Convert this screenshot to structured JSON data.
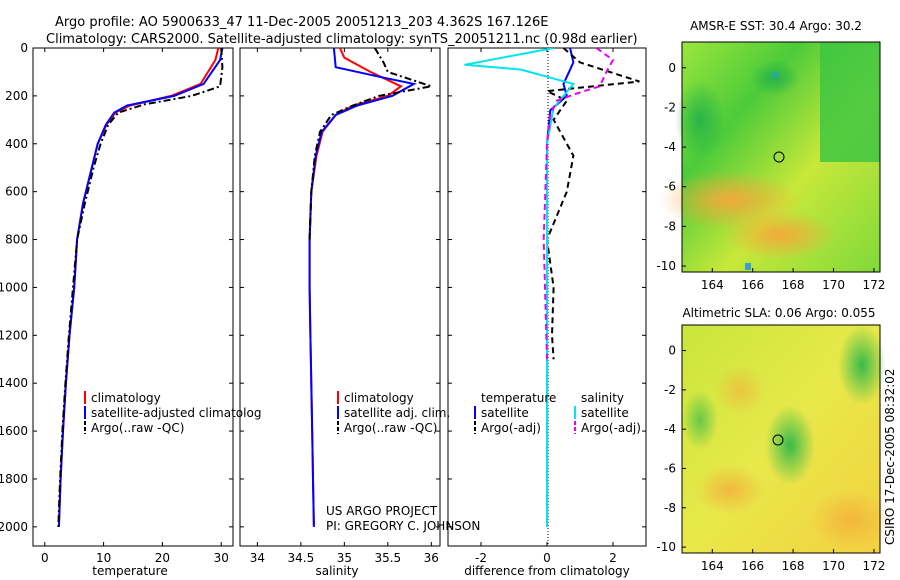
{
  "title_line1": "Argo profile: AO 5900633_47 11-Dec-2005 20051213_203 4.362S 167.126E",
  "title_line2": "Climatology: CARS2000. Satellite-adjusted climatology: synTS_20051211.nc (0.98d earlier)",
  "credit": [
    "US ARGO PROJECT",
    "PI: GREGORY C. JOHNSON"
  ],
  "side_label": "CSIRO 17-Dec-2005 08:32:02",
  "colors": {
    "climatology": "#ff0000",
    "satellite": "#0000ff",
    "argo": "#000000",
    "salinity_satellite": "#00e5ee",
    "salinity_argo": "#ee00ee"
  },
  "chart_data": [
    {
      "type": "line",
      "name": "temperature-panel",
      "xlabel": "temperature",
      "ylabel": "",
      "xlim": [
        -2,
        32
      ],
      "ylim": [
        2080,
        0
      ],
      "y_reversed": true,
      "xticks": [
        "0",
        "10",
        "20",
        "30"
      ],
      "xtick_values": [
        0,
        10,
        20,
        30
      ],
      "yticks": [
        "0",
        "200",
        "400",
        "600",
        "800",
        "1000",
        "1200",
        "1400",
        "1600",
        "1800",
        "2000"
      ],
      "ytick_values": [
        0,
        200,
        400,
        600,
        800,
        1000,
        1200,
        1400,
        1600,
        1800,
        2000
      ],
      "legend": [
        "climatology",
        "satellite-adjusted climatolog",
        "Argo(..raw -QC)"
      ],
      "series": [
        {
          "name": "climatology",
          "color": "#ff0000",
          "dash": "solid",
          "x": [
            29.5,
            29.0,
            26.5,
            21.5,
            14.5,
            12.0,
            10.5,
            9.0,
            8.0,
            6.5,
            5.5,
            5.0,
            4.2,
            3.6,
            3.1,
            2.7,
            2.4
          ],
          "y": [
            0,
            50,
            150,
            200,
            240,
            270,
            320,
            400,
            500,
            650,
            800,
            1000,
            1200,
            1400,
            1600,
            1800,
            2000
          ]
        },
        {
          "name": "satellite-adjusted climatolog",
          "color": "#0000ff",
          "dash": "solid",
          "x": [
            30.2,
            29.8,
            27.0,
            22.0,
            14.0,
            11.8,
            10.4,
            9.0,
            8.0,
            6.5,
            5.5,
            5.0,
            4.2,
            3.6,
            3.1,
            2.7,
            2.4
          ],
          "y": [
            0,
            50,
            150,
            200,
            240,
            270,
            320,
            400,
            500,
            650,
            800,
            1000,
            1200,
            1400,
            1600,
            1800,
            2000
          ]
        },
        {
          "name": "Argo(..raw -QC)",
          "color": "#000000",
          "dash": "dashdot",
          "x": [
            30.0,
            30.2,
            29.8,
            25.0,
            17.0,
            12.5,
            10.8,
            9.5,
            8.3,
            6.8,
            5.5,
            4.8,
            4.1,
            3.5,
            3.0,
            2.6,
            2.3
          ],
          "y": [
            0,
            80,
            160,
            200,
            235,
            270,
            320,
            400,
            500,
            650,
            800,
            1000,
            1200,
            1400,
            1600,
            1800,
            2000
          ]
        }
      ]
    },
    {
      "type": "line",
      "name": "salinity-panel",
      "xlabel": "salinity",
      "xlim": [
        33.8,
        36.1
      ],
      "ylim": [
        2080,
        0
      ],
      "y_reversed": true,
      "xticks": [
        "34",
        "34.5",
        "35",
        "35.5",
        "36"
      ],
      "xtick_values": [
        34,
        34.5,
        35,
        35.5,
        36
      ],
      "legend": [
        "climatology",
        "satellite adj. clim.",
        "Argo(..raw -QC)"
      ],
      "series": [
        {
          "name": "climatology",
          "color": "#ff0000",
          "dash": "solid",
          "x": [
            34.95,
            35.0,
            35.3,
            35.65,
            35.5,
            35.1,
            34.9,
            34.75,
            34.68,
            34.62,
            34.6,
            34.6,
            34.61,
            34.62,
            34.63,
            34.64,
            34.65
          ],
          "y": [
            0,
            40,
            100,
            160,
            200,
            240,
            280,
            350,
            450,
            600,
            800,
            1000,
            1200,
            1400,
            1600,
            1800,
            2000
          ]
        },
        {
          "name": "satellite adj. clim.",
          "color": "#0000ff",
          "dash": "solid",
          "x": [
            34.88,
            34.9,
            35.4,
            35.8,
            35.55,
            35.15,
            34.9,
            34.74,
            34.67,
            34.62,
            34.6,
            34.6,
            34.61,
            34.62,
            34.63,
            34.64,
            34.65
          ],
          "y": [
            0,
            80,
            120,
            150,
            200,
            240,
            280,
            350,
            450,
            600,
            800,
            1000,
            1200,
            1400,
            1600,
            1800,
            2000
          ]
        },
        {
          "name": "Argo(..raw -QC)",
          "color": "#000000",
          "dash": "dashdot",
          "x": [
            35.35,
            35.45,
            35.5,
            36.0,
            35.4,
            35.1,
            34.85,
            34.72,
            34.66,
            34.62,
            34.6
          ],
          "y": [
            0,
            60,
            100,
            160,
            200,
            240,
            280,
            350,
            450,
            600,
            800
          ]
        }
      ]
    },
    {
      "type": "line",
      "name": "difference-panel",
      "xlabel": "difference from climatology",
      "xlim": [
        -3,
        3
      ],
      "ylim": [
        2080,
        0
      ],
      "y_reversed": true,
      "xticks": [
        "-2",
        "0",
        "2"
      ],
      "xtick_values": [
        -2,
        0,
        2
      ],
      "legend_groups": [
        {
          "heading": "temperature",
          "entries": [
            "satellite",
            "Argo(-adj)"
          ]
        },
        {
          "heading": "salinity",
          "entries": [
            "satellite",
            "Argo(-adj)"
          ]
        }
      ],
      "series": [
        {
          "name": "satellite",
          "group": "temperature",
          "color": "#0000ff",
          "dash": "solid",
          "x": [
            0.7,
            0.8,
            0.5,
            0.6,
            0.1,
            0.0,
            0.0,
            0.0,
            0.0,
            0.0
          ],
          "y": [
            0,
            60,
            150,
            200,
            260,
            400,
            800,
            1200,
            1600,
            2000
          ]
        },
        {
          "name": "Argo(-adj)",
          "group": "temperature",
          "color": "#000000",
          "dash": "dashed",
          "x": [
            0.5,
            1.0,
            2.8,
            0.0,
            0.6,
            0.2,
            0.8,
            0.6,
            0.0,
            0.2,
            0.15,
            0.2
          ],
          "y": [
            0,
            60,
            140,
            180,
            220,
            300,
            450,
            600,
            800,
            1000,
            1200,
            1300
          ]
        },
        {
          "name": "satellite",
          "group": "salinity",
          "color": "#00e5ee",
          "dash": "solid",
          "x": [
            0.2,
            -2.5,
            -0.8,
            0.8,
            0.2,
            0.0,
            0.0,
            0.0,
            0.0,
            0.0
          ],
          "y": [
            0,
            70,
            90,
            150,
            250,
            400,
            800,
            1200,
            1600,
            2000
          ]
        },
        {
          "name": "Argo(-adj)",
          "group": "salinity",
          "color": "#ee00ee",
          "dash": "dashed",
          "x": [
            1.5,
            2.0,
            1.8,
            1.6,
            0.9,
            0.3,
            0.1,
            0.0,
            -0.1,
            0.0
          ],
          "y": [
            0,
            50,
            100,
            160,
            190,
            220,
            280,
            400,
            800,
            1300
          ]
        }
      ]
    },
    {
      "type": "heatmap",
      "name": "sst-map",
      "title": "AMSR-E SST: 30.4 Argo: 30.2",
      "xlim": [
        162.5,
        172.3
      ],
      "ylim": [
        -10.3,
        1.3
      ],
      "xticks": [
        "164",
        "166",
        "168",
        "170",
        "172"
      ],
      "xtick_values": [
        164,
        166,
        168,
        170,
        172
      ],
      "yticks": [
        "0",
        "-2",
        "-4",
        "-6",
        "-8",
        "-10"
      ],
      "ytick_values": [
        0,
        -2,
        -4,
        -6,
        -8,
        -10
      ],
      "marker": {
        "lon": 167.126,
        "lat": -4.362
      }
    },
    {
      "type": "heatmap",
      "name": "sla-map",
      "title": "Altimetric SLA: 0.06 Argo: 0.055",
      "xlim": [
        162.5,
        172.3
      ],
      "ylim": [
        -10.3,
        1.3
      ],
      "xticks": [
        "164",
        "166",
        "168",
        "170",
        "172"
      ],
      "xtick_values": [
        164,
        166,
        168,
        170,
        172
      ],
      "yticks": [
        "0",
        "-2",
        "-4",
        "-6",
        "-8",
        "-10"
      ],
      "ytick_values": [
        0,
        -2,
        -4,
        -6,
        -8,
        -10
      ],
      "marker": {
        "lon": 167.126,
        "lat": -4.362
      }
    }
  ]
}
